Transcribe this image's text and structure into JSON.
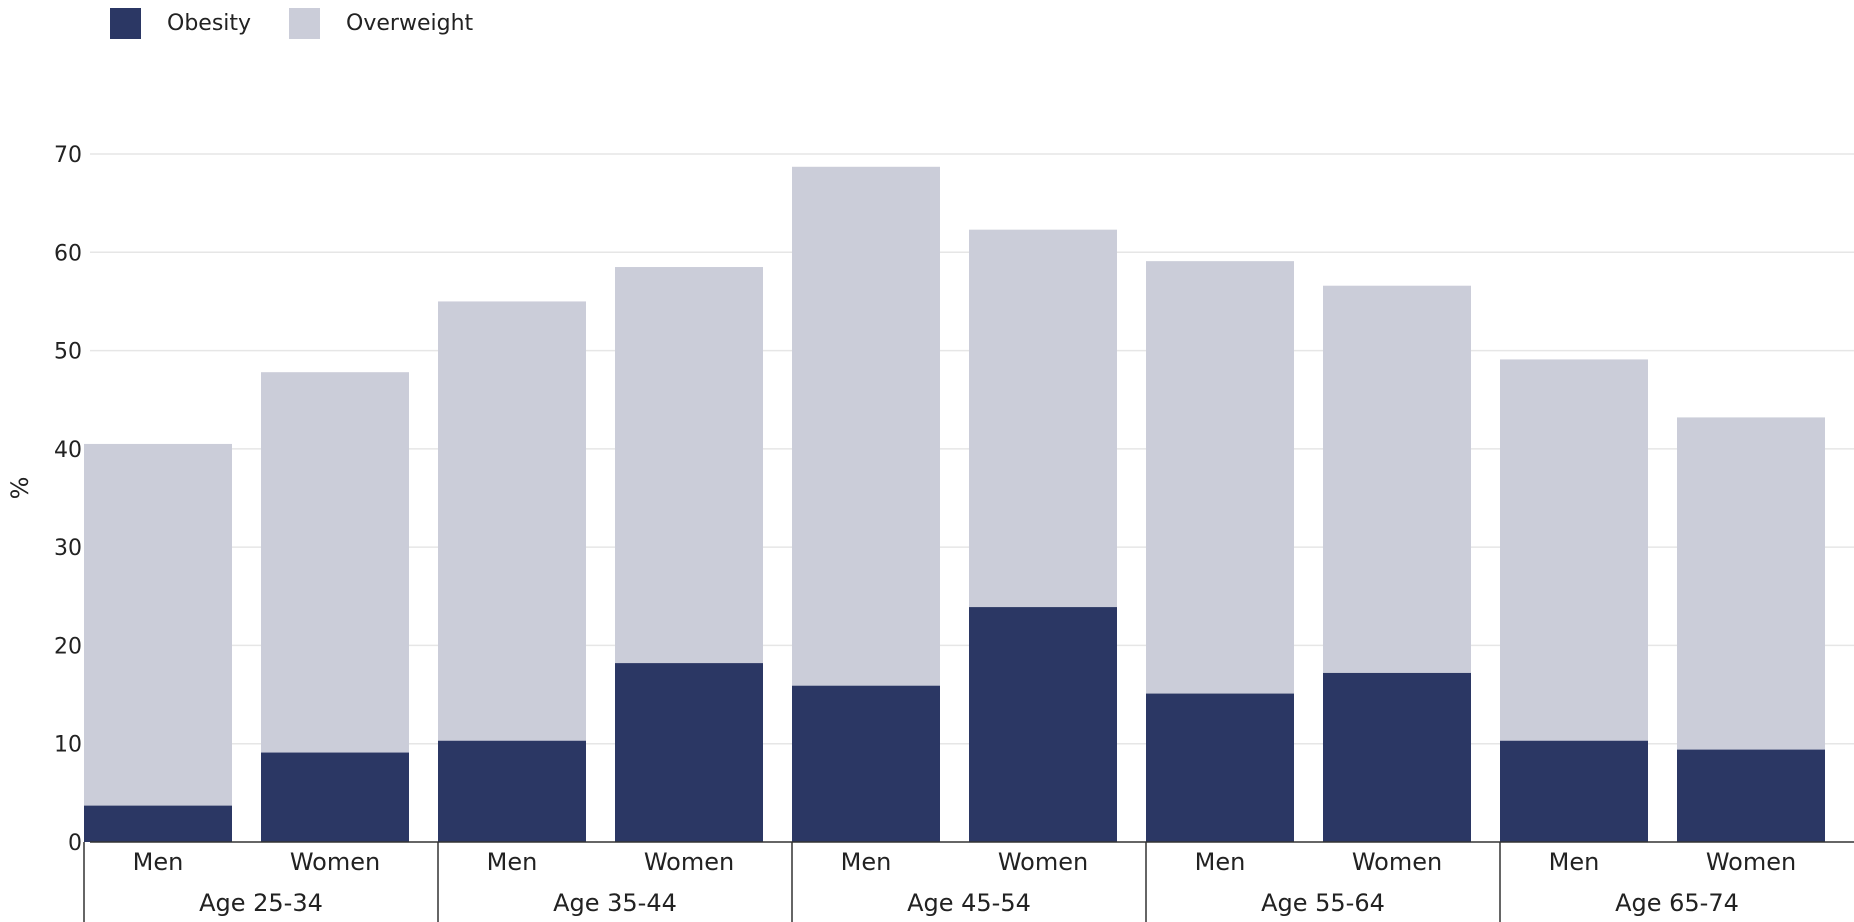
{
  "chart_data": {
    "type": "bar",
    "stacked": false,
    "ylabel": "%",
    "ylim": [
      0,
      70
    ],
    "yticks": [
      "0",
      "10",
      "20",
      "30",
      "40",
      "50",
      "60",
      "70"
    ],
    "grid": true,
    "legend_position": "top-left",
    "groups": [
      {
        "label": "Age 25-34",
        "categories": [
          "Men",
          "Women"
        ]
      },
      {
        "label": "Age 35-44",
        "categories": [
          "Men",
          "Women"
        ]
      },
      {
        "label": "Age 45-54",
        "categories": [
          "Men",
          "Women"
        ]
      },
      {
        "label": "Age 55-64",
        "categories": [
          "Men",
          "Women"
        ]
      },
      {
        "label": "Age 65-74",
        "categories": [
          "Men",
          "Women"
        ]
      }
    ],
    "series": [
      {
        "name": "Obesity",
        "color": "#2b3764",
        "values": [
          3.7,
          9.1,
          10.3,
          18.2,
          15.9,
          23.9,
          15.1,
          17.2,
          10.3,
          9.4
        ]
      },
      {
        "name": "Overweight",
        "color": "#cbcdd9",
        "values": [
          40.5,
          47.8,
          55.0,
          58.5,
          68.7,
          62.3,
          59.1,
          56.6,
          49.1,
          43.2
        ]
      }
    ]
  }
}
